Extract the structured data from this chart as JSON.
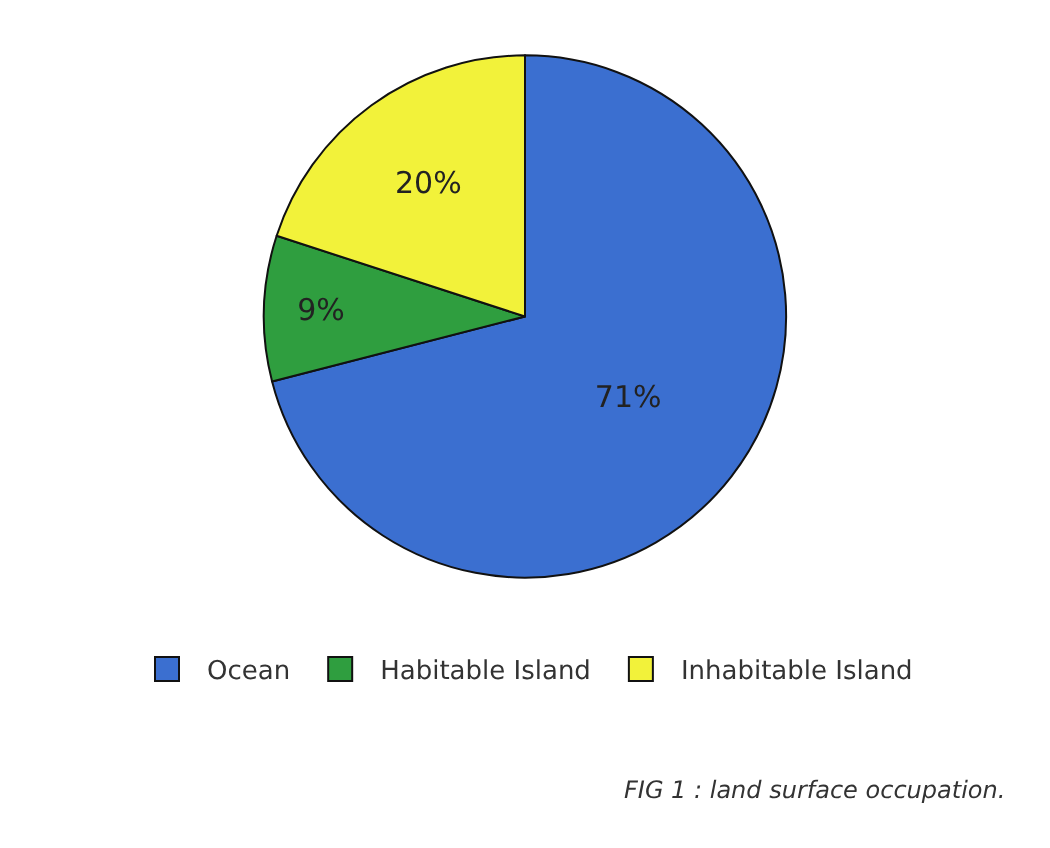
{
  "chart_data": {
    "type": "pie",
    "categories": [
      "Ocean",
      "Habitable Island",
      "Inhabitable Island"
    ],
    "values": [
      71,
      9,
      20
    ],
    "value_labels": [
      "71%",
      "9%",
      "20%"
    ],
    "colors": [
      "#3b6fd0",
      "#2f9e3f",
      "#f2f23a"
    ],
    "legend": "bottom",
    "annotations": [
      "FIG 1 : land surface occupation."
    ]
  }
}
